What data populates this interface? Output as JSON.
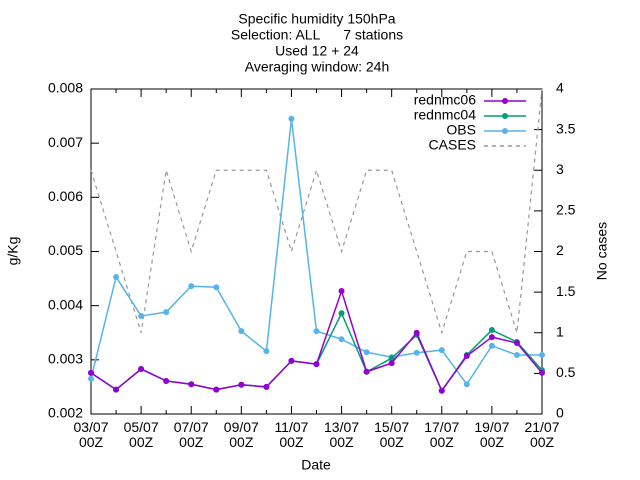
{
  "chart_data": {
    "type": "line",
    "title": [
      "Specific humidity 150hPa",
      "Selection: ALL      7 stations",
      "Used 12 + 24",
      "Averaging window: 24h"
    ],
    "xlabel": "Date",
    "ylabel": "g/Kg",
    "y2label": "No cases",
    "categories": [
      "03/07\n00Z",
      null,
      "05/07\n00Z",
      null,
      "07/07\n00Z",
      null,
      "09/07\n00Z",
      null,
      "11/07\n00Z",
      null,
      "13/07\n00Z",
      null,
      "15/07\n00Z",
      null,
      "17/07\n00Z",
      null,
      "19/07\n00Z",
      null,
      "21/07\n00Z"
    ],
    "ylim": [
      0.002,
      0.008
    ],
    "yticks": [
      0.002,
      0.003,
      0.004,
      0.005,
      0.006,
      0.007,
      0.008
    ],
    "y2lim": [
      0,
      4
    ],
    "y2ticks": [
      0,
      0.5,
      1,
      1.5,
      2,
      2.5,
      3,
      3.5,
      4
    ],
    "grid": false,
    "series": [
      {
        "name": "rednmc06",
        "color": "#9400d3",
        "values": [
          0.00276,
          0.00245,
          0.00283,
          0.00261,
          0.00255,
          0.00245,
          0.00254,
          0.0025,
          0.00298,
          0.00292,
          0.00427,
          0.00278,
          0.00294,
          0.0035,
          0.00243,
          0.00307,
          0.00342,
          0.00331,
          0.00276
        ]
      },
      {
        "name": "rednmc04",
        "color": "#009e73",
        "values": [
          0.00276,
          0.00245,
          0.00283,
          0.00261,
          0.00255,
          0.00245,
          0.00254,
          0.0025,
          0.00298,
          0.00292,
          0.00386,
          0.00278,
          0.00303,
          0.00346,
          0.00243,
          0.00309,
          0.00355,
          0.00333,
          0.00281
        ]
      },
      {
        "name": "OBS",
        "color": "#56b4e9",
        "values": [
          0.00265,
          0.00453,
          0.00381,
          0.00388,
          0.00436,
          0.00434,
          0.00353,
          0.00316,
          0.00745,
          0.00353,
          0.00338,
          0.00314,
          0.00305,
          0.00313,
          0.00318,
          0.00255,
          0.00326,
          0.00309,
          0.00309
        ]
      },
      {
        "name": "CASES",
        "color": "#999999",
        "dashed": true,
        "axis": "y2",
        "values": [
          3,
          2,
          1,
          3,
          2,
          3,
          3,
          3,
          2,
          3,
          2,
          3,
          3,
          2,
          1,
          2,
          2,
          1,
          4
        ]
      }
    ]
  }
}
